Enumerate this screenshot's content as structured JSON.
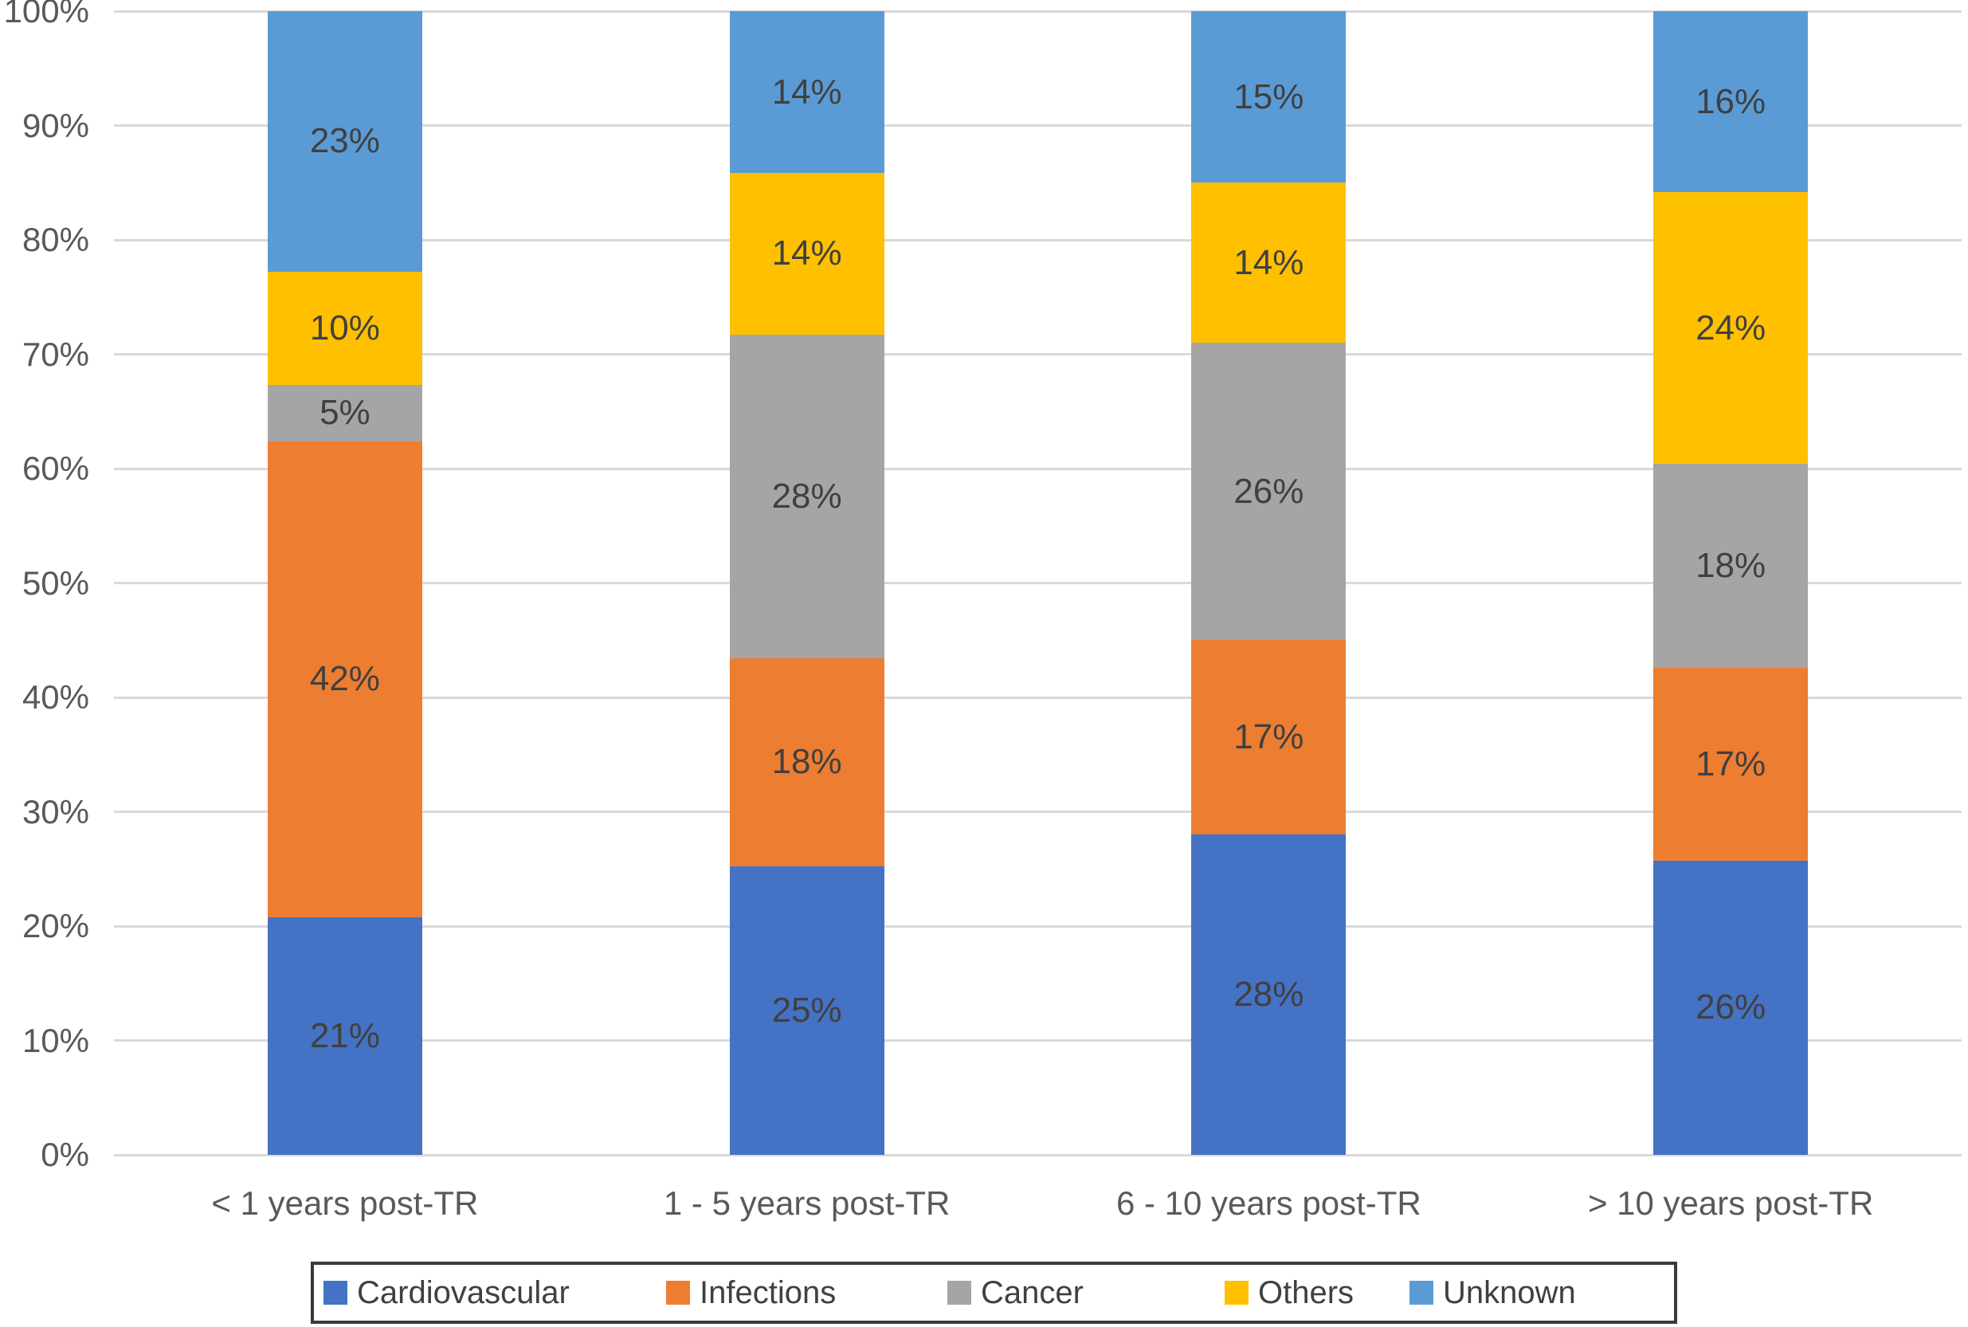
{
  "chart_data": {
    "type": "bar",
    "stacked": true,
    "percent_stacked": true,
    "title": "",
    "xlabel": "",
    "ylabel": "",
    "categories": [
      "< 1 years post-TR",
      "1 - 5 years post-TR",
      "6 - 10 years post-TR",
      "> 10 years post-TR"
    ],
    "series": [
      {
        "name": "Cardiovascular",
        "color": "#4472C4",
        "values": [
          21,
          25,
          28,
          26
        ]
      },
      {
        "name": "Infections",
        "color": "#ED7D31",
        "values": [
          42,
          18,
          17,
          17
        ]
      },
      {
        "name": "Cancer",
        "color": "#A5A5A5",
        "values": [
          5,
          28,
          26,
          18
        ]
      },
      {
        "name": "Others",
        "color": "#FFC000",
        "values": [
          10,
          14,
          14,
          24
        ]
      },
      {
        "name": "Unknown",
        "color": "#5B9BD5",
        "values": [
          23,
          14,
          15,
          16
        ]
      }
    ],
    "value_labels": [
      [
        "21%",
        "25%",
        "28%",
        "26%"
      ],
      [
        "42%",
        "18%",
        "17%",
        "17%"
      ],
      [
        "5%",
        "28%",
        "26%",
        "18%"
      ],
      [
        "10%",
        "14%",
        "14%",
        "24%"
      ],
      [
        "23%",
        "14%",
        "15%",
        "16%"
      ]
    ],
    "y_ticks": [
      "0%",
      "10%",
      "20%",
      "30%",
      "40%",
      "50%",
      "60%",
      "70%",
      "80%",
      "90%",
      "100%"
    ],
    "ylim": [
      0,
      100
    ],
    "grid": "horizontal",
    "legend_position": "bottom",
    "legend_entries": [
      "Cardiovascular",
      "Infections",
      "Cancer",
      "Others",
      "Unknown"
    ]
  },
  "colors": {
    "gridline": "#D9D9D9",
    "axis_tick_label": "#595959",
    "category_label": "#595959",
    "data_label": "#404040",
    "legend_text": "#404040",
    "legend_border": "#3A3A3A",
    "background": "#FFFFFF"
  }
}
